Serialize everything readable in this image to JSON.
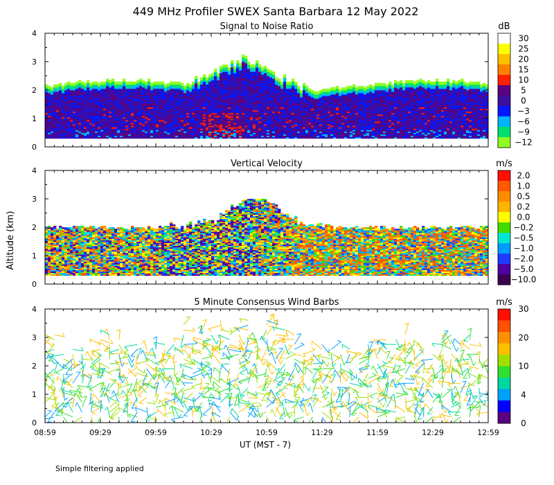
{
  "title": "449 MHz Profiler SWEX Santa Barbara 12 May 2022",
  "ylabel": "Altitude (km)",
  "xlabel": "UT  (MST - 7)",
  "footnote": "Simple filtering applied",
  "x_ticks": [
    "08:59",
    "09:29",
    "09:59",
    "10:29",
    "10:59",
    "11:29",
    "11:59",
    "12:29",
    "12:59"
  ],
  "y_ticks": [
    "0",
    "1",
    "2",
    "3",
    "4"
  ],
  "chart_data": [
    {
      "type": "heatmap",
      "title": "Signal to Noise Ratio",
      "colorbar_unit": "dB",
      "colorbar_labels": [
        "30",
        "25",
        "20",
        "15",
        "10",
        "5",
        "0",
        "−3",
        "−6",
        "−9",
        "−12"
      ],
      "colorbar_colors": [
        "#ffffff",
        "#ffff00",
        "#ffc000",
        "#ff8000",
        "#ff2000",
        "#5a0080",
        "#3c0fa0",
        "#0018ff",
        "#00b4ff",
        "#00e070",
        "#90ff20"
      ],
      "xlim": [
        "08:59",
        "12:59"
      ],
      "ylim": [
        0,
        4
      ],
      "data_altitude_range_km": [
        0.3,
        2.2
      ],
      "max_echo_top_km": 3.0
    },
    {
      "type": "heatmap",
      "title": "Vertical Velocity",
      "colorbar_unit": "m/s",
      "colorbar_labels": [
        "2.0",
        "1.0",
        "0.5",
        "0.2",
        "0.0",
        "−0.2",
        "−0.5",
        "−1.0",
        "−2.0",
        "−5.0",
        "−10.0"
      ],
      "colorbar_colors": [
        "#ff1000",
        "#ff5a00",
        "#ff8c00",
        "#ffb400",
        "#ffff00",
        "#40dc00",
        "#00e8d0",
        "#009cff",
        "#1e3cff",
        "#5000a0",
        "#3c0050"
      ],
      "xlim": [
        "08:59",
        "12:59"
      ],
      "ylim": [
        0,
        4
      ],
      "data_altitude_range_km": [
        0.3,
        2.1
      ],
      "max_echo_top_km": 2.9
    },
    {
      "type": "scatter",
      "title": "5 Minute Consensus Wind Barbs",
      "colorbar_unit": "m/s",
      "colorbar_labels": [
        "30",
        "20",
        "10",
        "4",
        "0"
      ],
      "colorbar_colors": [
        "#ff1000",
        "#ff5000",
        "#ff9000",
        "#ffc000",
        "#a0e000",
        "#30e030",
        "#00d8a0",
        "#00a0ff",
        "#0000ff",
        "#5a0080"
      ],
      "xlim": [
        "08:59",
        "12:59"
      ],
      "ylim": [
        0,
        4
      ],
      "data_altitude_range_km": [
        0.1,
        3.4
      ]
    }
  ]
}
